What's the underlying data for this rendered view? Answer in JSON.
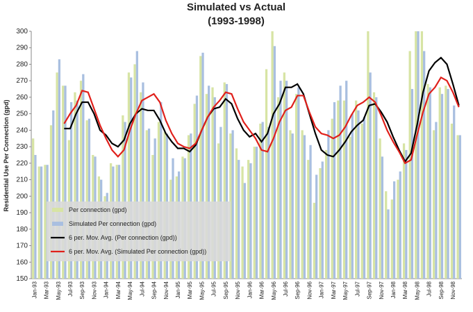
{
  "chart_data": {
    "type": "bar",
    "title": "Simulated vs Actual",
    "subtitle": "(1993-1998)",
    "y_label": "Residential Use Per Connection (gpd)",
    "categories": [
      "Jan-93",
      null,
      "Mar-93",
      null,
      "May-93",
      null,
      "Jul-93",
      null,
      "Sep-93",
      null,
      "Nov-93",
      null,
      "Jan-94",
      null,
      "Mar-94",
      null,
      "May-94",
      null,
      "Jul-94",
      null,
      "Sep-94",
      null,
      "Nov-94",
      null,
      "Jan-95",
      null,
      "Mar-95",
      null,
      "May-95",
      null,
      "Jul-95",
      null,
      "Sep-95",
      null,
      "Nov-95",
      null,
      "Jan-96",
      null,
      "Mar-96",
      null,
      "May-96",
      null,
      "Jul-96",
      null,
      "Sep-96",
      null,
      "Nov-96",
      null,
      "Jan-97",
      null,
      "Mar-97",
      null,
      "May-97",
      null,
      "Jul-97",
      null,
      "Sep-97",
      null,
      "Nov-97",
      null,
      "Jan-98",
      null,
      "Mar-98",
      null,
      "May-98",
      null,
      "Jul-98",
      null,
      "Sep-98",
      null,
      "Nov-98",
      null
    ],
    "ylim": [
      150,
      300
    ],
    "yticks": [
      150,
      160,
      170,
      180,
      190,
      200,
      210,
      220,
      230,
      240,
      250,
      260,
      270,
      280,
      290,
      300
    ],
    "legend": "lower left",
    "series": [
      {
        "name": "Per connection (gpd)",
        "type": "bar",
        "color": "#d7e4a4",
        "values": [
          235,
          218,
          219,
          243,
          275,
          267,
          234,
          263,
          270,
          246,
          225,
          212,
          200,
          220,
          219,
          249,
          275,
          280,
          263,
          240,
          225,
          245,
          239,
          210,
          212,
          224,
          237,
          256,
          285,
          262,
          266,
          232,
          269,
          238,
          229,
          218,
          222,
          230,
          244,
          277,
          300,
          260,
          275,
          240,
          262,
          240,
          222,
          196,
          217,
          228,
          247,
          258,
          258,
          236,
          258,
          244,
          300,
          263,
          235,
          203,
          198,
          210,
          232,
          288,
          300,
          300,
          268,
          240,
          266,
          267,
          244,
          237
        ]
      },
      {
        "name": "Simulated Per connection (gpd)",
        "type": "bar",
        "color": "#a9bfe0",
        "values": [
          225,
          218,
          219,
          252,
          283,
          267,
          257,
          258,
          274,
          247,
          224,
          210,
          202,
          218,
          219,
          245,
          272,
          288,
          269,
          241,
          235,
          257,
          238,
          223,
          215,
          223,
          238,
          261,
          287,
          267,
          260,
          242,
          268,
          240,
          222,
          208,
          220,
          230,
          245,
          242,
          291,
          270,
          270,
          238,
          266,
          237,
          231,
          213,
          221,
          240,
          257,
          267,
          270,
          250,
          252,
          248,
          275,
          260,
          224,
          192,
          209,
          215,
          228,
          265,
          300,
          288,
          266,
          245,
          262,
          265,
          255,
          237
        ]
      },
      {
        "name": "6 per. Mov. Avg. (Per connection (gpd))",
        "type": "line",
        "color": "#000000",
        "values": [
          null,
          null,
          null,
          null,
          null,
          241,
          241,
          250,
          257,
          257,
          250,
          240,
          237,
          232,
          230,
          234,
          244,
          250,
          253,
          252,
          252,
          246,
          238,
          233,
          229,
          229,
          227,
          231,
          240,
          248,
          253,
          254,
          259,
          256,
          247,
          240,
          236,
          238,
          233,
          238,
          250,
          256,
          266,
          266,
          268,
          262,
          250,
          238,
          228,
          225,
          224,
          228,
          233,
          239,
          243,
          246,
          255,
          256,
          251,
          245,
          236,
          228,
          221,
          226,
          243,
          263,
          276,
          281,
          284,
          280,
          268,
          255
        ]
      },
      {
        "name": "6 per. Mov. Avg. (Simulated Per connection (gpd))",
        "type": "line",
        "color": "#e0201b",
        "values": [
          null,
          null,
          null,
          null,
          null,
          244,
          250,
          255,
          264,
          263,
          253,
          243,
          235,
          228,
          224,
          228,
          240,
          250,
          258,
          260,
          262,
          257,
          246,
          238,
          232,
          230,
          229,
          232,
          240,
          248,
          254,
          258,
          263,
          262,
          253,
          245,
          240,
          235,
          228,
          227,
          235,
          245,
          252,
          254,
          261,
          261,
          251,
          242,
          238,
          237,
          235,
          237,
          242,
          249,
          255,
          257,
          260,
          257,
          249,
          240,
          233,
          227,
          220,
          222,
          237,
          251,
          262,
          266,
          272,
          270,
          263,
          254
        ]
      }
    ]
  }
}
